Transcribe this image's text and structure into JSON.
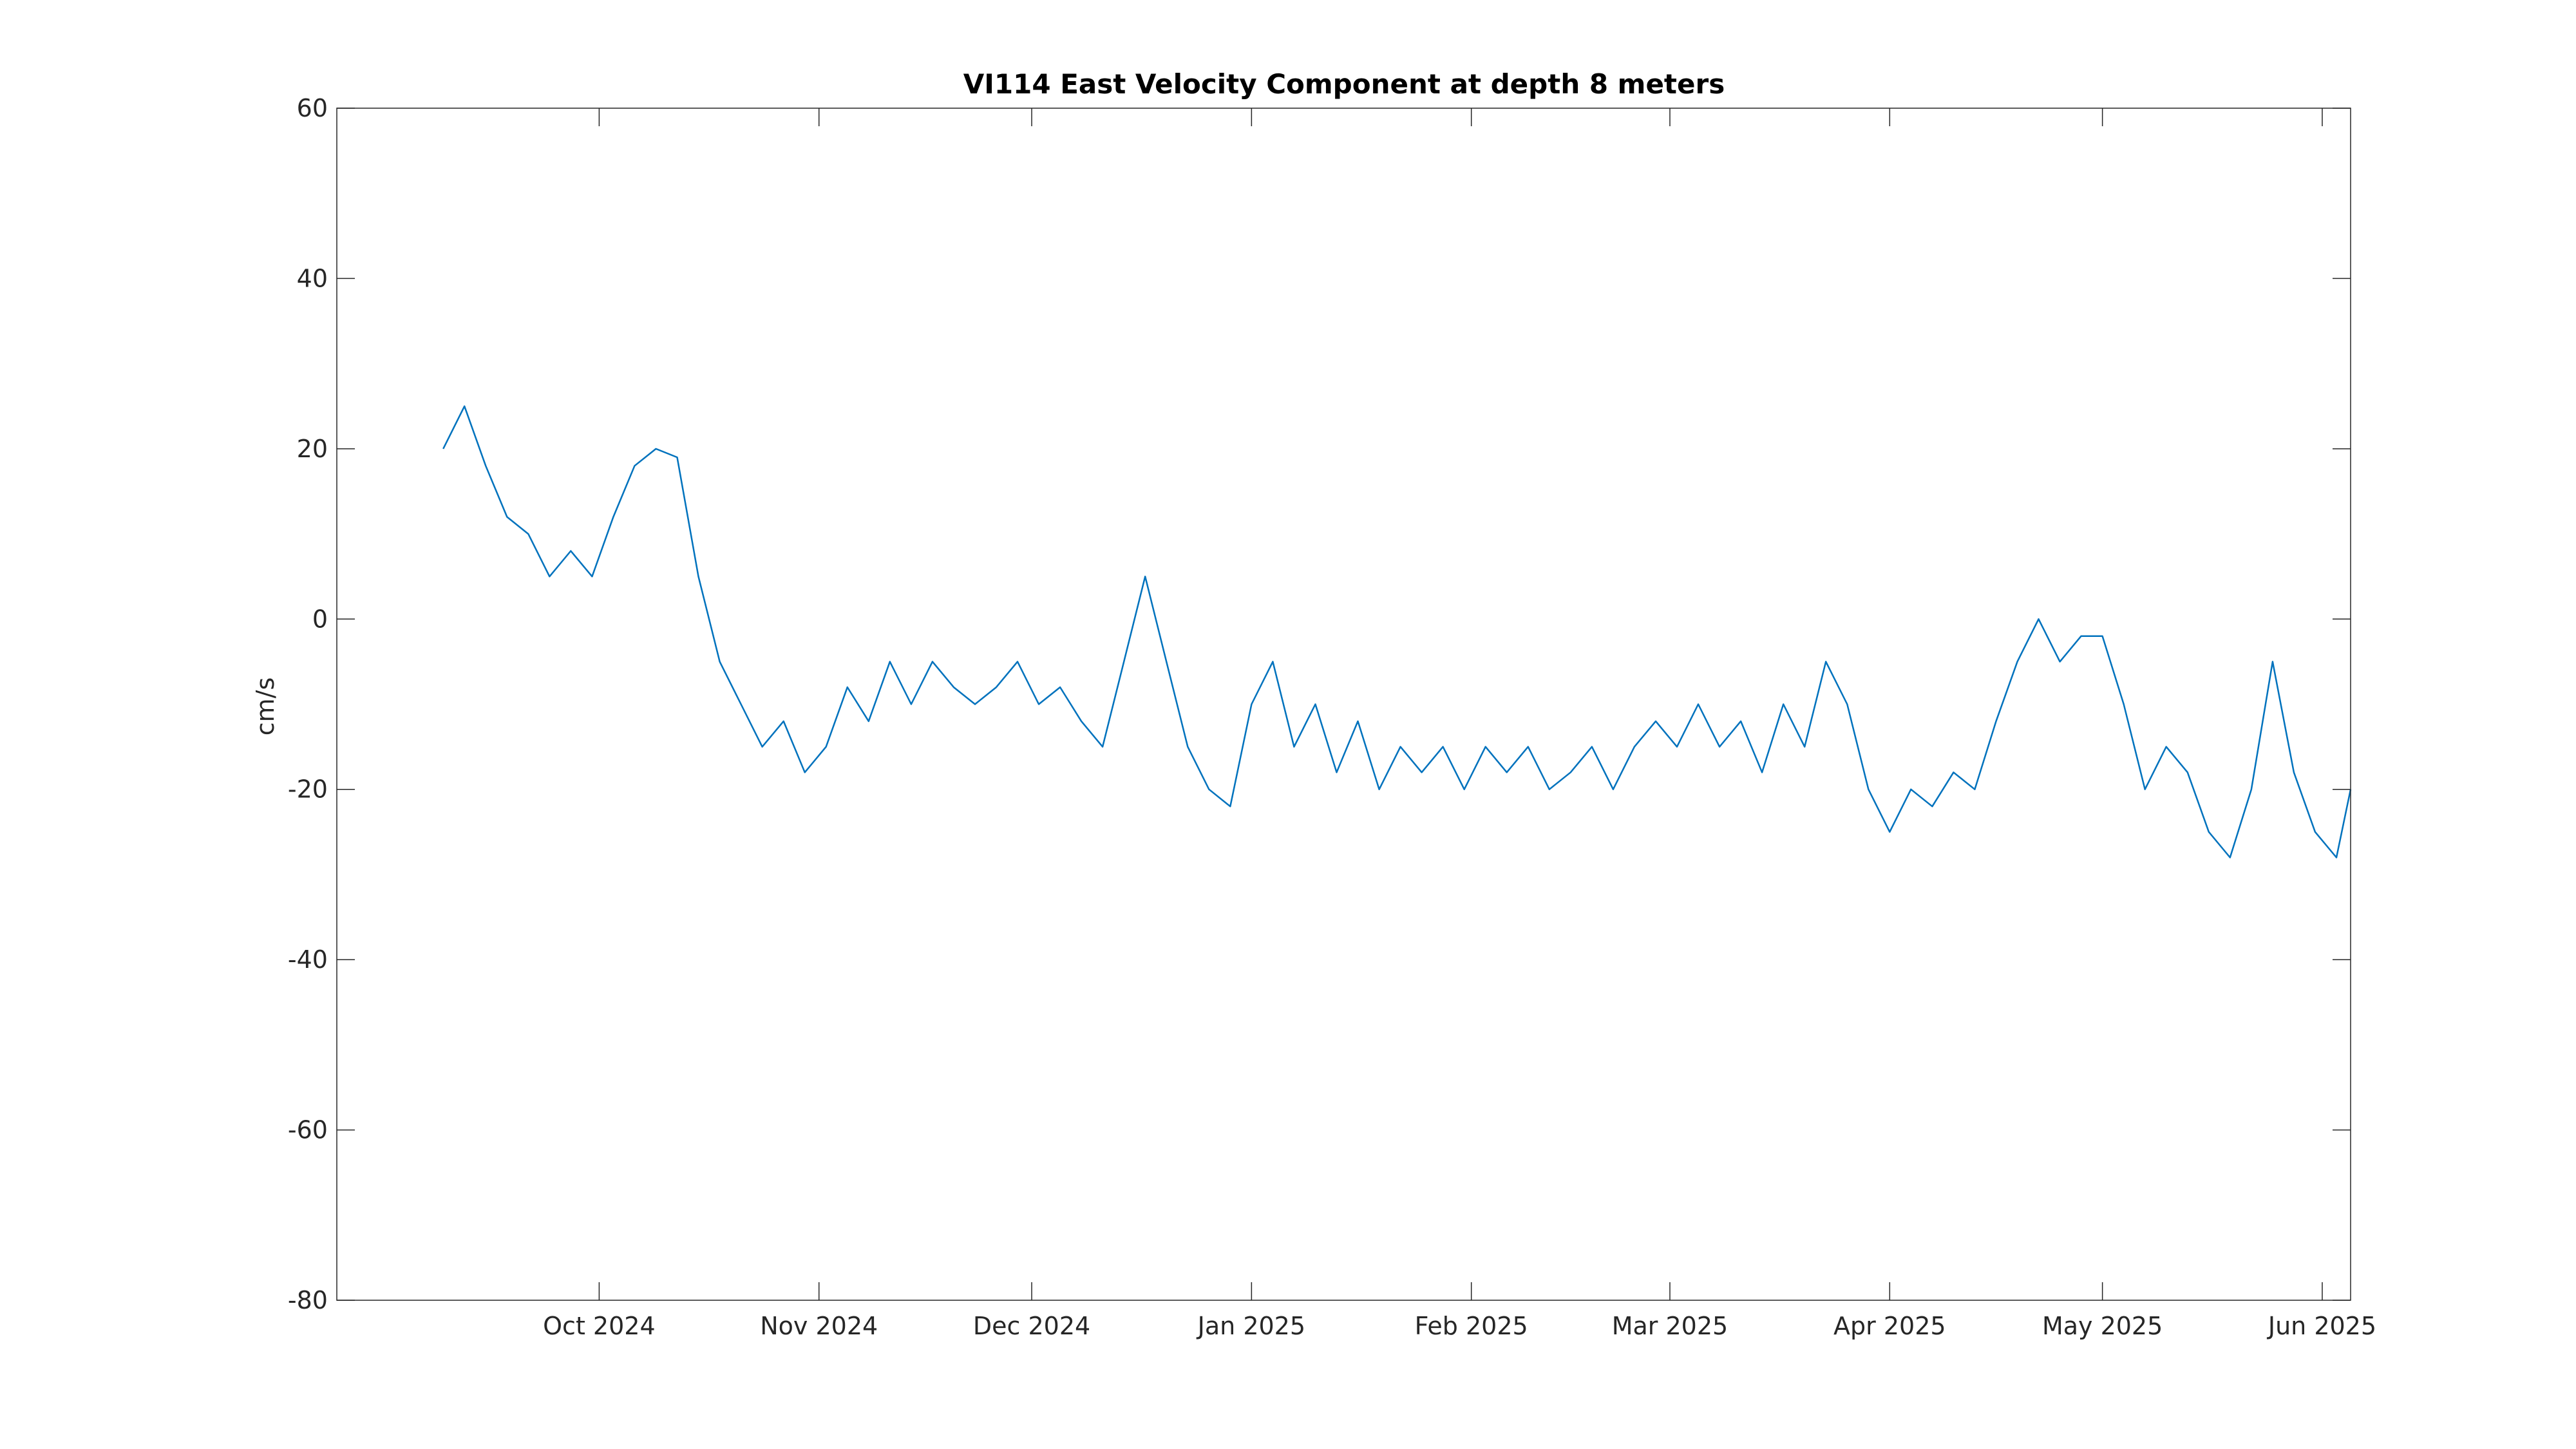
{
  "chart_data": {
    "type": "line",
    "title": "VI114 East Velocity Component at depth 8 meters",
    "xlabel": "",
    "ylabel": "cm/s",
    "xlim": [
      "2024-08-25",
      "2025-06-05"
    ],
    "ylim": [
      -80,
      60
    ],
    "yticks": [
      60,
      40,
      20,
      0,
      -20,
      -40,
      -60,
      -80
    ],
    "xticks": [
      {
        "date": "2024-10-01",
        "label": "Oct 2024"
      },
      {
        "date": "2024-11-01",
        "label": "Nov 2024"
      },
      {
        "date": "2024-12-01",
        "label": "Dec 2024"
      },
      {
        "date": "2025-01-01",
        "label": "Jan 2025"
      },
      {
        "date": "2025-02-01",
        "label": "Feb 2025"
      },
      {
        "date": "2025-03-01",
        "label": "Mar 2025"
      },
      {
        "date": "2025-04-01",
        "label": "Apr 2025"
      },
      {
        "date": "2025-05-01",
        "label": "May 2025"
      },
      {
        "date": "2025-06-01",
        "label": "Jun 2025"
      }
    ],
    "grid": false,
    "color": "#0072BD",
    "series": [
      {
        "x": [
          "2024-09-09",
          "2024-09-12",
          "2024-09-15",
          "2024-09-18",
          "2024-09-21",
          "2024-09-24",
          "2024-09-27",
          "2024-09-30",
          "2024-10-03",
          "2024-10-06",
          "2024-10-09",
          "2024-10-12",
          "2024-10-15",
          "2024-10-18",
          "2024-10-21",
          "2024-10-24",
          "2024-10-27",
          "2024-10-30",
          "2024-11-02",
          "2024-11-05",
          "2024-11-08",
          "2024-11-11",
          "2024-11-14",
          "2024-11-17",
          "2024-11-20",
          "2024-11-23",
          "2024-11-26",
          "2024-11-29",
          "2024-12-02",
          "2024-12-05",
          "2024-12-08",
          "2024-12-11",
          "2024-12-14",
          "2024-12-17",
          "2024-12-20",
          "2024-12-23",
          "2024-12-26",
          "2024-12-29",
          "2025-01-01",
          "2025-01-04",
          "2025-01-07",
          "2025-01-10",
          "2025-01-13",
          "2025-01-16",
          "2025-01-19",
          "2025-01-22",
          "2025-01-25",
          "2025-01-28",
          "2025-01-31",
          "2025-02-03",
          "2025-02-06",
          "2025-02-09",
          "2025-02-12",
          "2025-02-15",
          "2025-02-18",
          "2025-02-21",
          "2025-02-24",
          "2025-02-27",
          "2025-03-02",
          "2025-03-05",
          "2025-03-08",
          "2025-03-11",
          "2025-03-14",
          "2025-03-17",
          "2025-03-20",
          "2025-03-23",
          "2025-03-26",
          "2025-03-29",
          "2025-04-01",
          "2025-04-04",
          "2025-04-07",
          "2025-04-10",
          "2025-04-13",
          "2025-04-16",
          "2025-04-19",
          "2025-04-22",
          "2025-04-25",
          "2025-04-28",
          "2025-05-01",
          "2025-05-04",
          "2025-05-07",
          "2025-05-10",
          "2025-05-13",
          "2025-05-16",
          "2025-05-19",
          "2025-05-22",
          "2025-05-25",
          "2025-05-28",
          "2025-05-31",
          "2025-06-03",
          "2025-06-05"
        ],
        "y": [
          20,
          25,
          18,
          12,
          10,
          5,
          8,
          5,
          12,
          18,
          20,
          19,
          5,
          -5,
          -10,
          -15,
          -12,
          -18,
          -15,
          -8,
          -12,
          -5,
          -10,
          -5,
          -8,
          -10,
          -8,
          -5,
          -10,
          -8,
          -12,
          -15,
          -5,
          5,
          -5,
          -15,
          -20,
          -22,
          -10,
          -5,
          -15,
          -10,
          -18,
          -12,
          -20,
          -15,
          -18,
          -15,
          -20,
          -15,
          -18,
          -15,
          -20,
          -18,
          -15,
          -20,
          -15,
          -12,
          -15,
          -10,
          -15,
          -12,
          -18,
          -10,
          -15,
          -5,
          -10,
          -20,
          -25,
          -20,
          -22,
          -18,
          -20,
          -12,
          -5,
          0,
          -5,
          -2,
          -2,
          -10,
          -20,
          -15,
          -18,
          -25,
          -28,
          -20,
          -5,
          -18,
          -25,
          -28,
          -20
        ]
      }
    ]
  }
}
